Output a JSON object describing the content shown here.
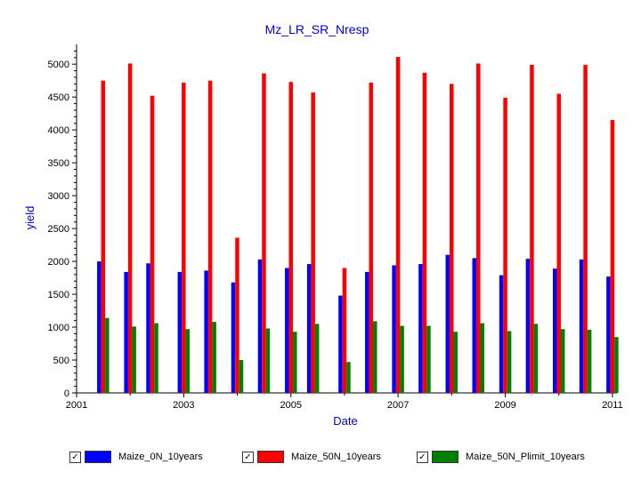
{
  "chart_data": {
    "type": "bar",
    "title": "Mz_LR_SR_Nresp",
    "xlabel": "Date",
    "ylabel": "yield",
    "xlim": [
      "2001-01-01",
      "2011-02-01"
    ],
    "ylim": [
      0,
      5300
    ],
    "x_ticks": [
      "2001",
      "2003",
      "2005",
      "2007",
      "2009",
      "2011"
    ],
    "y_ticks": [
      0,
      500,
      1000,
      1500,
      2000,
      2500,
      3000,
      3500,
      4000,
      4500,
      5000
    ],
    "grid": false,
    "legend_position": "bottom",
    "x": [
      "2001-07",
      "2002-01",
      "2002-06",
      "2003-01",
      "2003-07",
      "2004-01",
      "2004-07",
      "2005-01",
      "2005-06",
      "2006-01",
      "2006-07",
      "2007-01",
      "2007-07",
      "2008-01",
      "2008-07",
      "2009-01",
      "2009-07",
      "2010-01",
      "2010-07",
      "2011-01"
    ],
    "series": [
      {
        "name": "Maize_0N_10years",
        "color": "#0000ff",
        "values": [
          2000,
          1840,
          1970,
          1840,
          1860,
          1680,
          2030,
          1900,
          1960,
          1480,
          1840,
          1940,
          1960,
          2100,
          2050,
          1790,
          2040,
          1890,
          2030,
          1770
        ]
      },
      {
        "name": "Maize_50N_10years",
        "color": "#ff0000",
        "values": [
          4750,
          5010,
          4520,
          4720,
          4750,
          2360,
          4860,
          4730,
          4570,
          1900,
          4720,
          5110,
          4870,
          4700,
          5010,
          4490,
          4990,
          4550,
          4990,
          4150
        ]
      },
      {
        "name": "Maize_50N_Plimit_10years",
        "color": "#008000",
        "values": [
          1140,
          1010,
          1060,
          970,
          1080,
          500,
          980,
          930,
          1050,
          470,
          1090,
          1020,
          1020,
          930,
          1060,
          940,
          1050,
          970,
          960,
          850
        ]
      }
    ]
  },
  "legend_items": [
    {
      "label": "Maize_0N_10years",
      "checked": "✓",
      "color": "#0000ff"
    },
    {
      "label": "Maize_50N_10years",
      "checked": "✓",
      "color": "#ff0000"
    },
    {
      "label": "Maize_50N_Plimit_10years",
      "checked": "✓",
      "color": "#008000"
    }
  ]
}
